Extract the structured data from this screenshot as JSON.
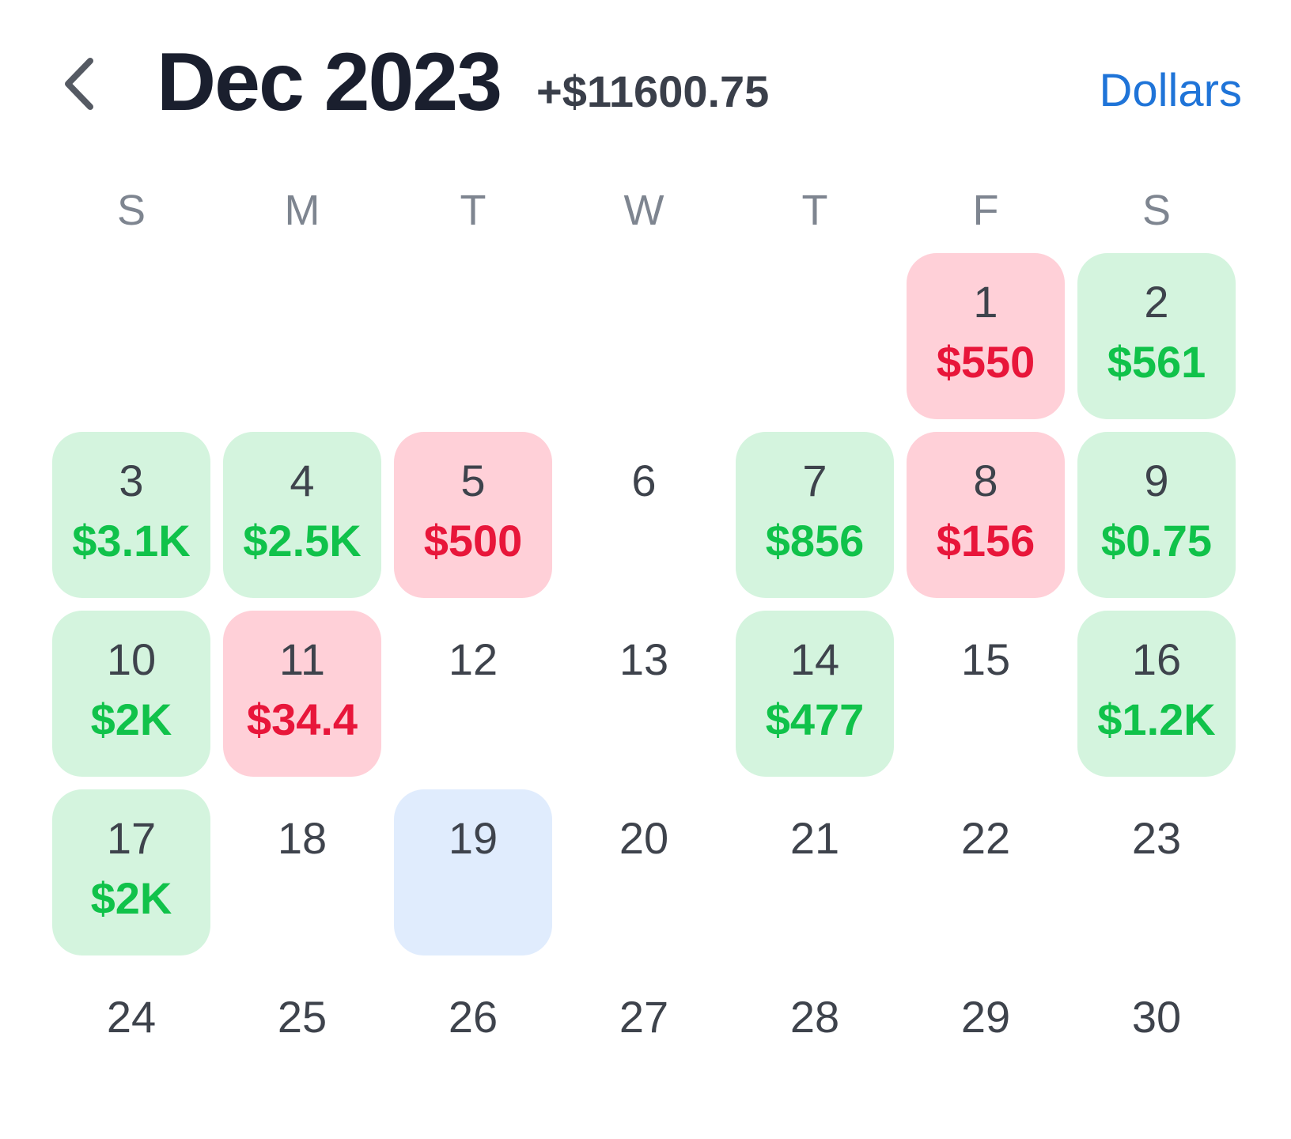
{
  "header": {
    "back_icon": "chevron-left-icon",
    "title": "Dec 2023",
    "total": "+$11600.75",
    "currency_toggle": "Dollars"
  },
  "colors": {
    "gain_bg": "#d4f4de",
    "gain_text": "#10c24a",
    "loss_bg": "#ffd0d8",
    "loss_text": "#e8163a",
    "today_bg": "#e0ecfd",
    "accent": "#1f74d8"
  },
  "weekdays": [
    "S",
    "M",
    "T",
    "W",
    "T",
    "F",
    "S"
  ],
  "calendar": {
    "first_weekday_index": 5,
    "days": [
      {
        "day": "1",
        "amount": "$550",
        "status": "loss"
      },
      {
        "day": "2",
        "amount": "$561",
        "status": "gain"
      },
      {
        "day": "3",
        "amount": "$3.1K",
        "status": "gain"
      },
      {
        "day": "4",
        "amount": "$2.5K",
        "status": "gain"
      },
      {
        "day": "5",
        "amount": "$500",
        "status": "loss"
      },
      {
        "day": "6",
        "amount": "",
        "status": "none"
      },
      {
        "day": "7",
        "amount": "$856",
        "status": "gain"
      },
      {
        "day": "8",
        "amount": "$156",
        "status": "loss"
      },
      {
        "day": "9",
        "amount": "$0.75",
        "status": "gain"
      },
      {
        "day": "10",
        "amount": "$2K",
        "status": "gain"
      },
      {
        "day": "11",
        "amount": "$34.4",
        "status": "loss"
      },
      {
        "day": "12",
        "amount": "",
        "status": "none"
      },
      {
        "day": "13",
        "amount": "",
        "status": "none"
      },
      {
        "day": "14",
        "amount": "$477",
        "status": "gain"
      },
      {
        "day": "15",
        "amount": "",
        "status": "none"
      },
      {
        "day": "16",
        "amount": "$1.2K",
        "status": "gain"
      },
      {
        "day": "17",
        "amount": "$2K",
        "status": "gain"
      },
      {
        "day": "18",
        "amount": "",
        "status": "none"
      },
      {
        "day": "19",
        "amount": "",
        "status": "today"
      },
      {
        "day": "20",
        "amount": "",
        "status": "none"
      },
      {
        "day": "21",
        "amount": "",
        "status": "none"
      },
      {
        "day": "22",
        "amount": "",
        "status": "none"
      },
      {
        "day": "23",
        "amount": "",
        "status": "none"
      },
      {
        "day": "24",
        "amount": "",
        "status": "none"
      },
      {
        "day": "25",
        "amount": "",
        "status": "none"
      },
      {
        "day": "26",
        "amount": "",
        "status": "none"
      },
      {
        "day": "27",
        "amount": "",
        "status": "none"
      },
      {
        "day": "28",
        "amount": "",
        "status": "none"
      },
      {
        "day": "29",
        "amount": "",
        "status": "none"
      },
      {
        "day": "30",
        "amount": "",
        "status": "none"
      }
    ]
  }
}
